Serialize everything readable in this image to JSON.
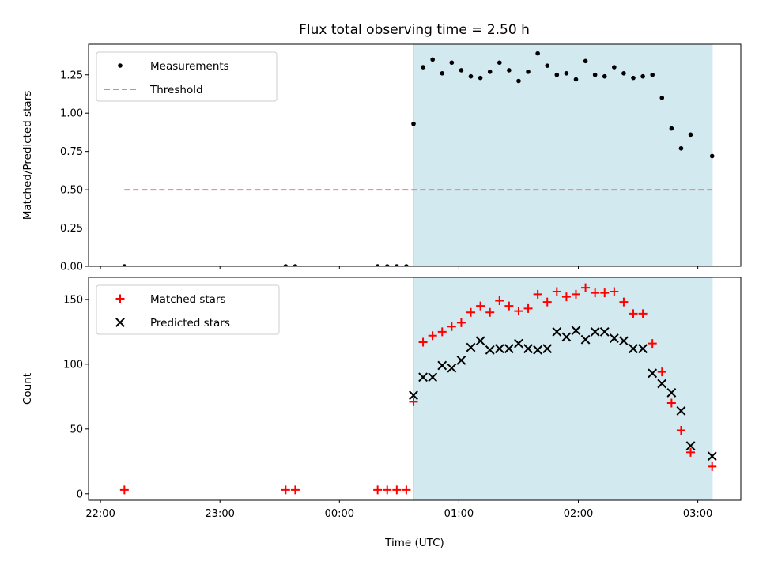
{
  "title": "Flux total observing time = 2.50 h",
  "chart_data": [
    {
      "type": "scatter",
      "ylabel": "Matched/Predicted stars",
      "xlim": [
        -0.1,
        5.36
      ],
      "ylim": [
        0,
        1.45
      ],
      "yticks": [
        0.0,
        0.25,
        0.5,
        0.75,
        1.0,
        1.25
      ],
      "ytick_labels": [
        "0.00",
        "0.25",
        "0.50",
        "0.75",
        "1.00",
        "1.25"
      ],
      "shaded_region": {
        "x0": 2.62,
        "x1": 5.12,
        "color": "#d3e9f0"
      },
      "legend": {
        "placement": "top-left",
        "entries": [
          {
            "label": "Measurements",
            "marker": "dot",
            "color": "#000000"
          },
          {
            "label": "Threshold",
            "marker": "dashed-line",
            "color": "#f08080"
          }
        ]
      },
      "series": [
        {
          "name": "Measurements",
          "marker": "dot",
          "color": "#000000",
          "points": [
            [
              0.2,
              0.0
            ],
            [
              1.55,
              0.0
            ],
            [
              1.63,
              0.0
            ],
            [
              2.32,
              0.0
            ],
            [
              2.4,
              0.0
            ],
            [
              2.48,
              0.0
            ],
            [
              2.56,
              0.0
            ],
            [
              2.62,
              0.93
            ],
            [
              2.7,
              1.3
            ],
            [
              2.78,
              1.35
            ],
            [
              2.86,
              1.26
            ],
            [
              2.94,
              1.33
            ],
            [
              3.02,
              1.28
            ],
            [
              3.1,
              1.24
            ],
            [
              3.18,
              1.23
            ],
            [
              3.26,
              1.27
            ],
            [
              3.34,
              1.33
            ],
            [
              3.42,
              1.28
            ],
            [
              3.5,
              1.21
            ],
            [
              3.58,
              1.27
            ],
            [
              3.66,
              1.39
            ],
            [
              3.74,
              1.31
            ],
            [
              3.82,
              1.25
            ],
            [
              3.9,
              1.26
            ],
            [
              3.98,
              1.22
            ],
            [
              4.06,
              1.34
            ],
            [
              4.14,
              1.25
            ],
            [
              4.22,
              1.24
            ],
            [
              4.3,
              1.3
            ],
            [
              4.38,
              1.26
            ],
            [
              4.46,
              1.23
            ],
            [
              4.54,
              1.24
            ],
            [
              4.62,
              1.25
            ],
            [
              4.7,
              1.1
            ],
            [
              4.78,
              0.9
            ],
            [
              4.86,
              0.77
            ],
            [
              4.94,
              0.86
            ],
            [
              5.12,
              0.72
            ]
          ]
        },
        {
          "name": "Threshold",
          "type": "line",
          "style": "dashed",
          "color": "#f08080",
          "points": [
            [
              0.2,
              0.5
            ],
            [
              5.12,
              0.5
            ]
          ]
        }
      ]
    },
    {
      "type": "scatter",
      "xlabel": "Time (UTC)",
      "ylabel": "Count",
      "xlim": [
        -0.1,
        5.36
      ],
      "ylim": [
        -5,
        167
      ],
      "xticks": [
        0,
        1,
        2,
        3,
        4,
        5
      ],
      "xtick_labels": [
        "22:00",
        "23:00",
        "00:00",
        "01:00",
        "02:00",
        "03:00"
      ],
      "yticks": [
        0,
        50,
        100,
        150
      ],
      "ytick_labels": [
        "0",
        "50",
        "100",
        "150"
      ],
      "shaded_region": {
        "x0": 2.62,
        "x1": 5.12,
        "color": "#d3e9f0"
      },
      "legend": {
        "placement": "top-left",
        "entries": [
          {
            "label": "Matched stars",
            "marker": "plus",
            "color": "#ff0000"
          },
          {
            "label": "Predicted stars",
            "marker": "x",
            "color": "#000000"
          }
        ]
      },
      "series": [
        {
          "name": "Matched stars",
          "marker": "plus",
          "color": "#ff0000",
          "points": [
            [
              0.2,
              3
            ],
            [
              1.55,
              3
            ],
            [
              1.63,
              3
            ],
            [
              2.32,
              3
            ],
            [
              2.4,
              3
            ],
            [
              2.48,
              3
            ],
            [
              2.56,
              3
            ],
            [
              2.62,
              71
            ],
            [
              2.7,
              117
            ],
            [
              2.78,
              122
            ],
            [
              2.86,
              125
            ],
            [
              2.94,
              129
            ],
            [
              3.02,
              132
            ],
            [
              3.1,
              140
            ],
            [
              3.18,
              145
            ],
            [
              3.26,
              140
            ],
            [
              3.34,
              149
            ],
            [
              3.42,
              145
            ],
            [
              3.5,
              141
            ],
            [
              3.58,
              143
            ],
            [
              3.66,
              154
            ],
            [
              3.74,
              148
            ],
            [
              3.82,
              156
            ],
            [
              3.9,
              152
            ],
            [
              3.98,
              154
            ],
            [
              4.06,
              159
            ],
            [
              4.14,
              155
            ],
            [
              4.22,
              155
            ],
            [
              4.3,
              156
            ],
            [
              4.38,
              148
            ],
            [
              4.46,
              139
            ],
            [
              4.54,
              139
            ],
            [
              4.62,
              116
            ],
            [
              4.7,
              94
            ],
            [
              4.78,
              70
            ],
            [
              4.86,
              49
            ],
            [
              4.94,
              32
            ],
            [
              5.12,
              21
            ]
          ]
        },
        {
          "name": "Predicted stars",
          "marker": "x",
          "color": "#000000",
          "points": [
            [
              2.62,
              76
            ],
            [
              2.7,
              90
            ],
            [
              2.78,
              90
            ],
            [
              2.86,
              99
            ],
            [
              2.94,
              97
            ],
            [
              3.02,
              103
            ],
            [
              3.1,
              113
            ],
            [
              3.18,
              118
            ],
            [
              3.26,
              111
            ],
            [
              3.34,
              112
            ],
            [
              3.42,
              112
            ],
            [
              3.5,
              116
            ],
            [
              3.58,
              112
            ],
            [
              3.66,
              111
            ],
            [
              3.74,
              112
            ],
            [
              3.82,
              125
            ],
            [
              3.9,
              121
            ],
            [
              3.98,
              126
            ],
            [
              4.06,
              119
            ],
            [
              4.14,
              125
            ],
            [
              4.22,
              125
            ],
            [
              4.3,
              120
            ],
            [
              4.38,
              118
            ],
            [
              4.46,
              112
            ],
            [
              4.54,
              112
            ],
            [
              4.62,
              93
            ],
            [
              4.7,
              85
            ],
            [
              4.78,
              78
            ],
            [
              4.86,
              64
            ],
            [
              4.94,
              37
            ],
            [
              5.12,
              29
            ]
          ]
        }
      ]
    }
  ]
}
